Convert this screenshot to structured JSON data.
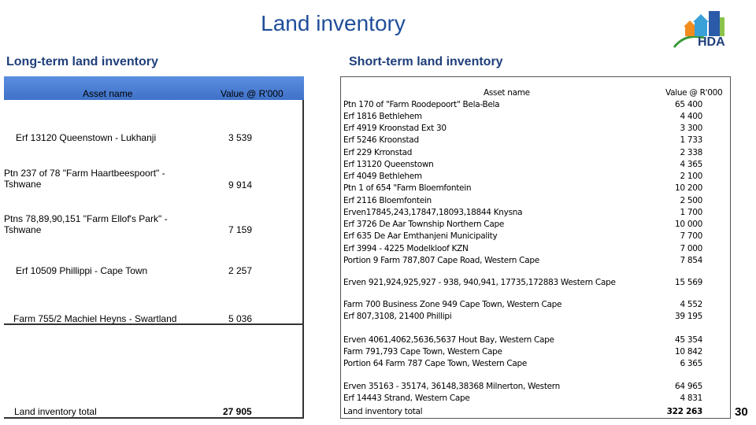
{
  "title": "Land inventory",
  "logo": {
    "text": "HDA"
  },
  "page_number": "30",
  "long_term": {
    "heading": "Long-term land inventory",
    "header": [
      "Asset name",
      "Value @ R'000"
    ],
    "rows": [
      [
        "Erf 13120 Queenstown - Lukhanji",
        "3 539"
      ],
      [
        "Ptn 237 of 78 \"Farm Haartbeespoort\" - Tshwane",
        "9 914"
      ],
      [
        "Ptns 78,89,90,151 \"Farm Ellof's Park\" - Tshwane",
        "7 159"
      ],
      [
        "Erf 10509 Phillippi - Cape Town",
        "2 257"
      ],
      [
        "Farm 755/2 Machiel Heyns - Swartland",
        "5 036"
      ]
    ],
    "total": [
      "Land inventory total",
      "27 905"
    ]
  },
  "short_term": {
    "heading": "Short-term land inventory",
    "header": [
      "Asset name",
      "Value @ R'000"
    ],
    "groups": [
      [
        [
          "Ptn 170 of \"Farm Roodepoort\" Bela-Bela",
          "65 400"
        ],
        [
          "Erf 1816 Bethlehem",
          "4 400"
        ],
        [
          "Erf 4919 Kroonstad Ext 30",
          "3 300"
        ],
        [
          "Erf 5246 Kroonstad",
          "1 733"
        ],
        [
          "Erf 229 Krronstad",
          "2 338"
        ],
        [
          "Erf 13120 Queenstown",
          "4 365"
        ],
        [
          "Erf 4049 Bethlehem",
          "2 100"
        ],
        [
          "Ptn 1 of 654 \"Farm Bloemfontein",
          "10 200"
        ],
        [
          "Erf 2116 Bloemfontein",
          "2 500"
        ],
        [
          "Erven17845,243,17847,18093,18844 Knysna",
          "1 700"
        ],
        [
          "Erf 3726 De Aar Township Northern Cape",
          "10 000"
        ],
        [
          "Erf 635 De Aar Emthanjeni Municipality",
          "7 700"
        ],
        [
          "Erf 3994 - 4225 Modelkloof KZN",
          "7 000"
        ],
        [
          "Portion 9 Farm 787,807 Cape Road, Western Cape",
          "7 854"
        ]
      ],
      [
        [
          "Erven 921,924,925,927 - 938, 940,941, 17735,172883 Western Cape",
          "15 569"
        ]
      ],
      [
        [
          "Farm 700 Business Zone 949 Cape Town, Western Cape",
          "4 552"
        ],
        [
          "Erf 807,3108, 21400 Phillipi",
          "39 195"
        ]
      ],
      [
        [
          "Erven 4061,4062,5636,5637 Hout Bay, Western Cape",
          "45 354"
        ],
        [
          "Farm 791,793 Cape Town, Western Cape",
          "10 842"
        ],
        [
          "Portion 64 Farm 787 Cape Town, Western Cape",
          "6 365"
        ]
      ],
      [
        [
          "Erven 35163 - 35174, 36148,38368 Milnerton, Western",
          "64 965"
        ],
        [
          "Erf 14443 Strand, Western Cape",
          "4 831"
        ]
      ]
    ],
    "total": [
      "Land inventory total",
      "322 263"
    ]
  }
}
